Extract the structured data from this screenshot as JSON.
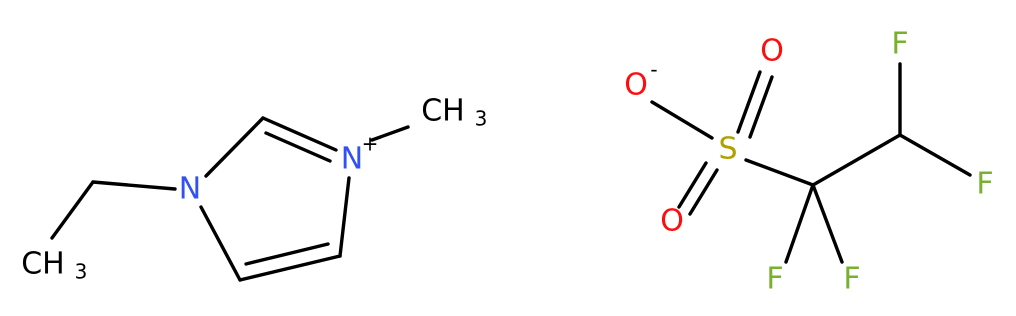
{
  "cation": {
    "atoms": [
      {
        "label": "N",
        "color": "#3050f8"
      },
      {
        "label": "N",
        "color": "#3050f8",
        "charge": "+"
      },
      {
        "label": "CH",
        "sub": "3",
        "color": "#000000"
      },
      {
        "label": "CH",
        "sub": "3",
        "color": "#000000"
      }
    ]
  },
  "anion": {
    "atoms": [
      {
        "label": "O",
        "color": "#ff0d0d",
        "charge": "-"
      },
      {
        "label": "O",
        "color": "#ff0d0d"
      },
      {
        "label": "S",
        "color": "#b2a000"
      },
      {
        "label": "O",
        "color": "#ff0d0d"
      },
      {
        "label": "F",
        "color": "#7ab030"
      },
      {
        "label": "F",
        "color": "#7ab030"
      },
      {
        "label": "F",
        "color": "#7ab030"
      },
      {
        "label": "F",
        "color": "#7ab030"
      }
    ]
  }
}
